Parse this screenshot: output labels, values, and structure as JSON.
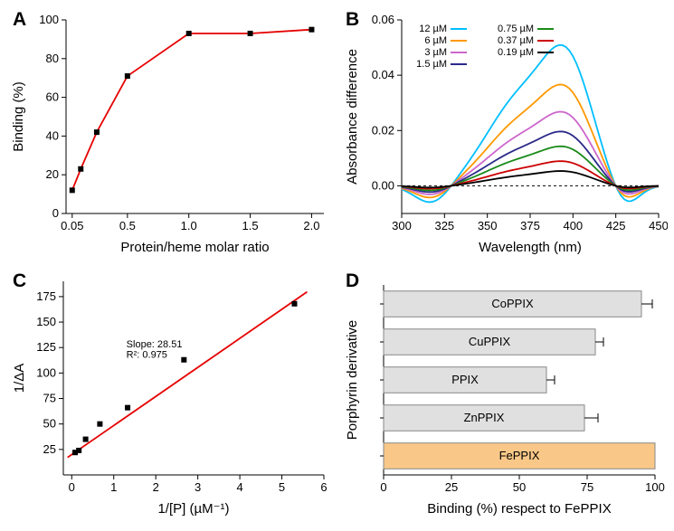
{
  "panelA": {
    "label": "A",
    "type": "line+scatter",
    "xlabel": "Protein/heme molar ratio",
    "ylabel": "Binding (%)",
    "xlim": [
      0,
      2.1
    ],
    "ylim": [
      0,
      100
    ],
    "yticks": [
      0,
      20,
      40,
      60,
      80,
      100
    ],
    "xticks": [
      0.05,
      0.5,
      1.0,
      1.5,
      2.0
    ],
    "xticklabels": [
      "0.05",
      "0.5",
      "1.0",
      "1.5",
      "2.0"
    ],
    "line_color": "#e60000",
    "marker_color": "#000000",
    "marker_size": 6,
    "points_x": [
      0.05,
      0.12,
      0.25,
      0.5,
      1.0,
      1.5,
      2.0
    ],
    "points_y": [
      12,
      23,
      42,
      71,
      93,
      93,
      95
    ],
    "label_fontsize": 15,
    "tick_fontsize": 13
  },
  "panelB": {
    "label": "B",
    "type": "line",
    "xlabel": "Wavelength (nm)",
    "ylabel": "Absorbance difference",
    "xlim": [
      300,
      450
    ],
    "ylim": [
      -0.01,
      0.06
    ],
    "xticks": [
      300,
      325,
      350,
      375,
      400,
      425,
      450
    ],
    "yticks": [
      0.0,
      0.02,
      0.04,
      0.06
    ],
    "yticklabels": [
      "0.00",
      "0.02",
      "0.04",
      "0.06"
    ],
    "zero_color": "#000000",
    "zero_dash": "3,3",
    "label_fontsize": 15,
    "tick_fontsize": 13,
    "legend_fontsize": 11,
    "series": [
      {
        "name": "12 µM",
        "color": "#00bfff",
        "peak": 0.057
      },
      {
        "name": "6 µM",
        "color": "#ff9900",
        "peak": 0.041
      },
      {
        "name": "3 µM",
        "color": "#cc66cc",
        "peak": 0.03
      },
      {
        "name": "1.5 µM",
        "color": "#2a2a8a",
        "peak": 0.022
      },
      {
        "name": "0.75 µM",
        "color": "#1a8a1a",
        "peak": 0.016
      },
      {
        "name": "0.37 µM",
        "color": "#cc0000",
        "peak": 0.01
      },
      {
        "name": "0.19 µM",
        "color": "#000000",
        "peak": 0.006
      }
    ],
    "legend_col1": [
      "12 µM",
      "6 µM",
      "3 µM",
      "1.5 µM"
    ],
    "legend_col2": [
      "0.75 µM",
      "0.37 µM",
      "0.19 µM"
    ]
  },
  "panelC": {
    "label": "C",
    "type": "scatter+fit",
    "xlabel": "1/[P] (µM⁻¹)",
    "ylabel": "1/ΔA",
    "xlim": [
      -0.2,
      6
    ],
    "ylim": [
      0,
      190
    ],
    "xticks": [
      0,
      1,
      2,
      3,
      4,
      5,
      6
    ],
    "yticks": [
      25,
      50,
      75,
      100,
      125,
      150,
      175
    ],
    "line_color": "#e60000",
    "marker_color": "#000000",
    "marker_size": 6,
    "fit_slope": 28.51,
    "fit_intercept": 20,
    "annotation_slope": "Slope: 28.51",
    "annotation_r2": "R²: 0.975",
    "annotation_fontsize": 11,
    "points_x": [
      0.08,
      0.17,
      0.33,
      0.67,
      1.33,
      2.67,
      5.3
    ],
    "points_y": [
      22,
      24,
      35,
      50,
      66,
      113,
      168
    ],
    "label_fontsize": 15,
    "tick_fontsize": 13
  },
  "panelD": {
    "label": "D",
    "type": "bar-horizontal",
    "xlabel": "Binding (%) respect to FePPIX",
    "ylabel": "Porphyrin derivative",
    "xlim": [
      0,
      100
    ],
    "xticks": [
      0,
      25,
      50,
      75,
      100
    ],
    "bar_color": "#e0e0e0",
    "bar_highlight_color": "#f9c888",
    "bar_border": "#888888",
    "error_color": "#000000",
    "label_fontsize": 15,
    "tick_fontsize": 13,
    "bar_label_fontsize": 13,
    "bars": [
      {
        "name": "CoPPIX",
        "value": 95,
        "err": 4,
        "highlight": false
      },
      {
        "name": "CuPPIX",
        "value": 78,
        "err": 3,
        "highlight": false
      },
      {
        "name": "PPIX",
        "value": 60,
        "err": 3,
        "highlight": false
      },
      {
        "name": "ZnPPIX",
        "value": 74,
        "err": 5,
        "highlight": false
      },
      {
        "name": "FePPIX",
        "value": 100,
        "err": 0,
        "highlight": true
      }
    ]
  }
}
